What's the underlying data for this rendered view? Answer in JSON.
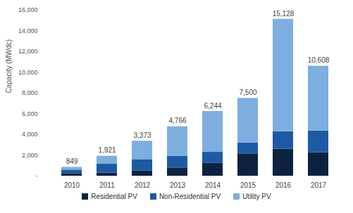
{
  "chart_data": {
    "type": "bar",
    "stacked": true,
    "y_label": "Capacity (MWdc)",
    "categories": [
      "2010",
      "2011",
      "2012",
      "2013",
      "2014",
      "2015",
      "2016",
      "2017"
    ],
    "series": [
      {
        "name": "Residential PV",
        "color": "#0d2240",
        "values": [
          250,
          300,
          490,
          790,
          1230,
          2150,
          2600,
          2250
        ]
      },
      {
        "name": "Non-Residential PV",
        "color": "#1d5aa4",
        "values": [
          340,
          850,
          1110,
          1110,
          1070,
          1050,
          1700,
          2100
        ]
      },
      {
        "name": "Utility PV",
        "color": "#7eaedf",
        "values": [
          259,
          771,
          1773,
          2866,
          3944,
          4300,
          10828,
          6258
        ]
      }
    ],
    "totals": [
      849,
      1921,
      3373,
      4766,
      6244,
      7500,
      15128,
      10608
    ],
    "total_labels": [
      "849",
      "1,921",
      "3,373",
      "4,766",
      "6,244",
      "7,500",
      "15,128",
      "10,608"
    ],
    "ylim": [
      0,
      16000
    ],
    "yticks": [
      {
        "value": 0,
        "label": "-"
      },
      {
        "value": 2000,
        "label": "2,000"
      },
      {
        "value": 4000,
        "label": "4,000"
      },
      {
        "value": 6000,
        "label": "6,000"
      },
      {
        "value": 8000,
        "label": "8,000"
      },
      {
        "value": 10000,
        "label": "10,000"
      },
      {
        "value": 12000,
        "label": "12,000"
      },
      {
        "value": 14000,
        "label": "14,000"
      },
      {
        "value": 16000,
        "label": "16,000"
      }
    ],
    "grid": false,
    "legend": "bottom",
    "data_labels": true
  }
}
